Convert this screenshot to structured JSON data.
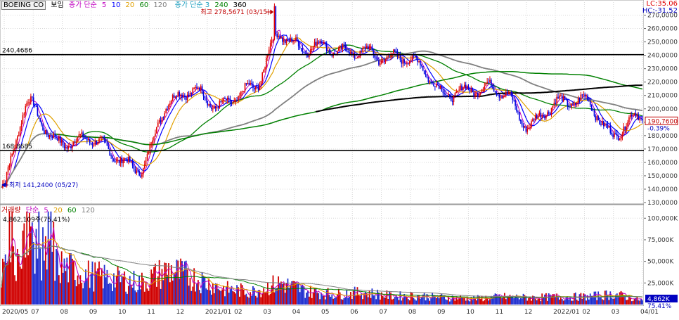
{
  "header": {
    "symbol": "BOEING CO",
    "tab": "보임",
    "ma_label": "종가 단순",
    "ma_periods": [
      "5",
      "10",
      "20",
      "60",
      "120"
    ],
    "ma2_label": "종가 단순 3",
    "ma2_periods": [
      "240",
      "360"
    ],
    "ma_colors": [
      "#c000c0",
      "#0000ff",
      "#e0a000",
      "#008000",
      "#808080"
    ],
    "ma2_colors": [
      "#008000",
      "#000000"
    ],
    "lc": "LC:35.06",
    "hc": "HC:-31.52"
  },
  "price_panel": {
    "y_ticks": [
      "270,0000",
      "260,0000",
      "250,0000",
      "240,0000",
      "230,0000",
      "220,0000",
      "210,0000",
      "200,0000",
      "190,0000",
      "180,0000",
      "170,0000",
      "160,0000",
      "150,0000",
      "140,0000",
      "130,0000"
    ],
    "high_annotation": "최고 278,5671 (03/15)",
    "low_annotation": "최저 141,2400 (05/27)",
    "level_top_label": "240,4686",
    "level_bottom_label": "168,8685",
    "last_price": "190,7600",
    "last_change": "-0.39%"
  },
  "volume_panel": {
    "label": "거래량",
    "ma_label": "단순",
    "ma_periods": [
      "5",
      "20",
      "60",
      "120"
    ],
    "ma_colors": [
      "#c000c0",
      "#e0a000",
      "#008000",
      "#808080"
    ],
    "info": "4,862,109주(75,41%)",
    "y_ticks": [
      "100,000K",
      "75,000K",
      "50,000K",
      "25,000K"
    ],
    "last_volume": "4,862K",
    "last_pct": "75.41%"
  },
  "x_axis": {
    "labels": [
      "2020/05",
      "07",
      "08",
      "09",
      "10",
      "11",
      "12",
      "2021/01",
      "02",
      "03",
      "04",
      "05",
      "06",
      "07",
      "08",
      "09",
      "10",
      "11",
      "12",
      "2022/01",
      "02",
      "03",
      "04/01"
    ]
  },
  "chart_data": {
    "type": "candlestick",
    "title": "BOEING CO",
    "x": [
      "2020/05",
      "2020/06",
      "2020/07",
      "2020/08",
      "2020/09",
      "2020/10",
      "2020/11",
      "2020/12",
      "2021/01",
      "2021/02",
      "2021/03",
      "2021/04",
      "2021/05",
      "2021/06",
      "2021/07",
      "2021/08",
      "2021/09",
      "2021/10",
      "2021/11",
      "2021/12",
      "2022/01",
      "2022/02",
      "2022/03",
      "2022/04"
    ],
    "close": [
      160,
      200,
      180,
      175,
      165,
      160,
      200,
      215,
      205,
      210,
      260,
      245,
      240,
      248,
      235,
      232,
      215,
      210,
      215,
      190,
      200,
      210,
      180,
      190.76
    ],
    "volume_k": [
      40000,
      70000,
      45000,
      35000,
      30000,
      25000,
      40000,
      30000,
      18000,
      15000,
      25000,
      15000,
      12000,
      14000,
      10000,
      10000,
      8000,
      7000,
      9000,
      8000,
      9000,
      9000,
      12000,
      4862
    ],
    "price_ylim": [
      130,
      275
    ],
    "volume_ylim": [
      0,
      110000
    ],
    "horizontal_lines": [
      240.4686,
      168.8685
    ],
    "high": {
      "value": 278.5671,
      "date": "03/15"
    },
    "low": {
      "value": 141.24,
      "date": "05/27"
    },
    "last_close": 190.76,
    "last_change_pct": -0.39,
    "last_volume": 4862109,
    "last_volume_pct": 75.41,
    "series": [
      {
        "name": "5",
        "color": "#c000c0"
      },
      {
        "name": "10",
        "color": "#0000ff"
      },
      {
        "name": "20",
        "color": "#e0a000"
      },
      {
        "name": "60",
        "color": "#008000"
      },
      {
        "name": "120",
        "color": "#808080"
      },
      {
        "name": "240",
        "color": "#008000"
      },
      {
        "name": "360",
        "color": "#000000"
      }
    ]
  }
}
